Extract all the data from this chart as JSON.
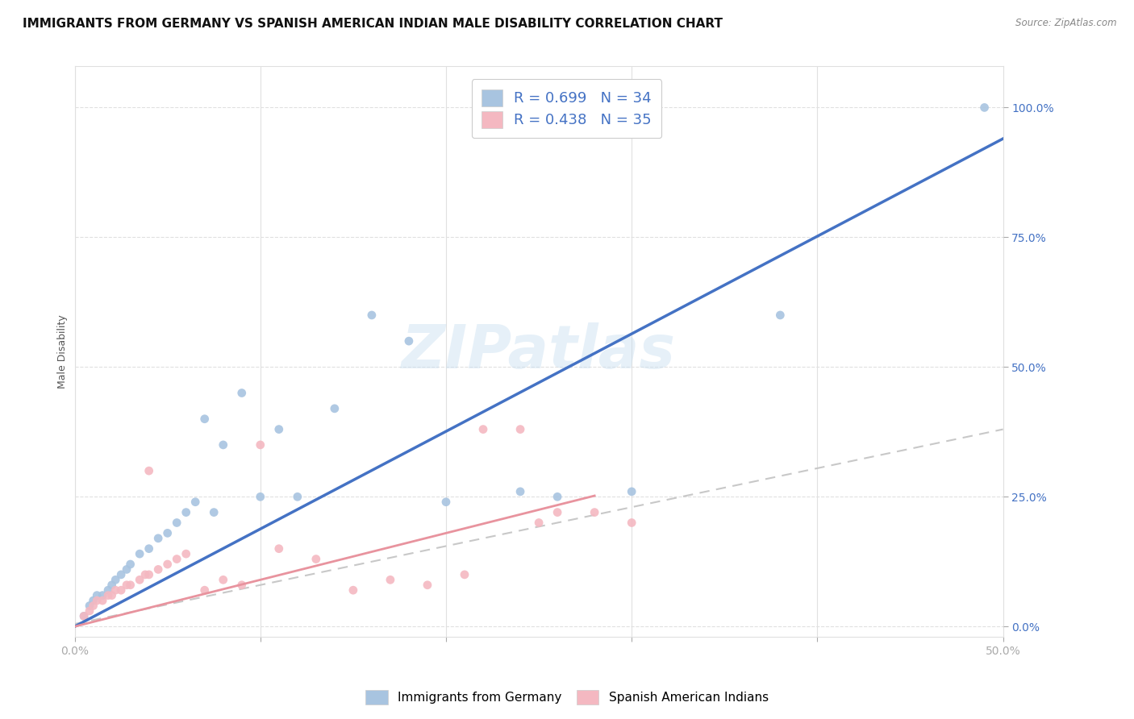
{
  "title": "IMMIGRANTS FROM GERMANY VS SPANISH AMERICAN INDIAN MALE DISABILITY CORRELATION CHART",
  "source": "Source: ZipAtlas.com",
  "ylabel": "Male Disability",
  "watermark": "ZIPatlas",
  "xlim": [
    0.0,
    0.5
  ],
  "ylim": [
    -0.02,
    1.08
  ],
  "xticks": [
    0.0,
    0.1,
    0.2,
    0.3,
    0.4,
    0.5
  ],
  "xtick_labels": [
    "0.0%",
    "",
    "",
    "",
    "",
    "50.0%"
  ],
  "yticks": [
    0.0,
    0.25,
    0.5,
    0.75,
    1.0
  ],
  "ytick_labels": [
    "0.0%",
    "25.0%",
    "50.0%",
    "75.0%",
    "100.0%"
  ],
  "R_blue": 0.699,
  "N_blue": 34,
  "R_pink": 0.438,
  "N_pink": 35,
  "legend_label_blue": "Immigrants from Germany",
  "legend_label_pink": "Spanish American Indians",
  "scatter_blue_x": [
    0.005,
    0.008,
    0.01,
    0.012,
    0.015,
    0.018,
    0.02,
    0.022,
    0.025,
    0.028,
    0.03,
    0.035,
    0.04,
    0.045,
    0.05,
    0.055,
    0.06,
    0.065,
    0.07,
    0.075,
    0.08,
    0.09,
    0.1,
    0.11,
    0.12,
    0.14,
    0.16,
    0.18,
    0.2,
    0.24,
    0.26,
    0.3,
    0.38,
    0.49
  ],
  "scatter_blue_y": [
    0.02,
    0.04,
    0.05,
    0.06,
    0.06,
    0.07,
    0.08,
    0.09,
    0.1,
    0.11,
    0.12,
    0.14,
    0.15,
    0.17,
    0.18,
    0.2,
    0.22,
    0.24,
    0.4,
    0.22,
    0.35,
    0.45,
    0.25,
    0.38,
    0.25,
    0.42,
    0.6,
    0.55,
    0.24,
    0.26,
    0.25,
    0.26,
    0.6,
    1.0
  ],
  "scatter_pink_x": [
    0.005,
    0.008,
    0.01,
    0.012,
    0.015,
    0.018,
    0.02,
    0.022,
    0.025,
    0.028,
    0.03,
    0.035,
    0.038,
    0.04,
    0.045,
    0.05,
    0.055,
    0.06,
    0.07,
    0.08,
    0.09,
    0.1,
    0.11,
    0.13,
    0.15,
    0.17,
    0.19,
    0.21,
    0.22,
    0.24,
    0.25,
    0.26,
    0.28,
    0.3,
    0.04
  ],
  "scatter_pink_y": [
    0.02,
    0.03,
    0.04,
    0.05,
    0.05,
    0.06,
    0.06,
    0.07,
    0.07,
    0.08,
    0.08,
    0.09,
    0.1,
    0.1,
    0.11,
    0.12,
    0.13,
    0.14,
    0.07,
    0.09,
    0.08,
    0.35,
    0.15,
    0.13,
    0.07,
    0.09,
    0.08,
    0.1,
    0.38,
    0.38,
    0.2,
    0.22,
    0.22,
    0.2,
    0.3
  ],
  "color_blue": "#a8c4e0",
  "color_pink": "#f4b8c1",
  "line_blue": "#4472c4",
  "line_pink": "#e8939e",
  "line_gray_dash": "#c8c8c8",
  "grid_color": "#e0e0e0",
  "background_color": "#ffffff",
  "title_fontsize": 11,
  "axis_label_fontsize": 9,
  "tick_fontsize": 10,
  "blue_line_slope": 1.88,
  "blue_line_intercept": 0.0,
  "pink_line_slope": 0.9,
  "pink_line_intercept": 0.0,
  "gray_dash_slope": 0.75,
  "gray_dash_intercept": 0.005
}
